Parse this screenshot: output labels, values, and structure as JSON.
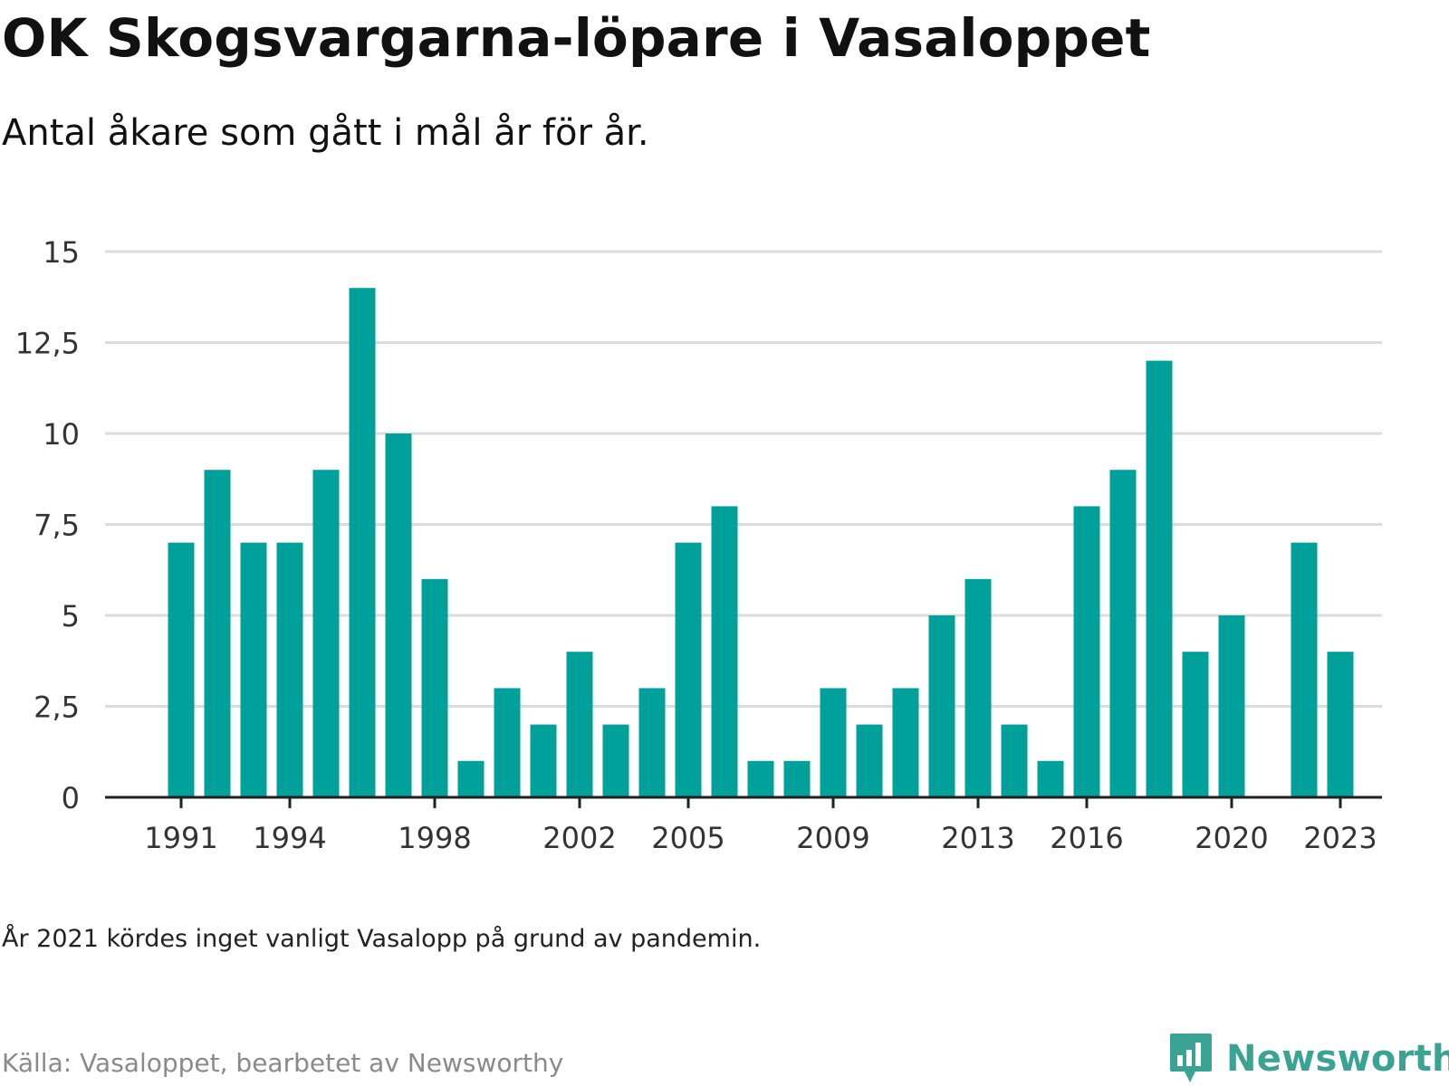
{
  "header": {
    "title": "OK Skogsvargarna-löpare i Vasaloppet",
    "subtitle": "Antal åkare som gått i mål år för år."
  },
  "footer": {
    "note": "År 2021 kördes inget vanligt Vasalopp på grund av pandemin.",
    "source": "Källa: Vasaloppet, bearbetet av Newsworthy",
    "brand": "Newsworthy",
    "brand_icon": "bar-chart-speech-bubble-icon"
  },
  "colors": {
    "bar": "#00a19a",
    "grid": "#dcdcdc",
    "axis": "#222222",
    "brand": "#3aa394"
  },
  "chart_data": {
    "type": "bar",
    "title": "OK Skogsvargarna-löpare i Vasaloppet",
    "subtitle": "Antal åkare som gått i mål år för år.",
    "xlabel": "",
    "ylabel": "",
    "x": [
      1991,
      1992,
      1993,
      1994,
      1995,
      1996,
      1997,
      1998,
      1999,
      2000,
      2001,
      2002,
      2003,
      2004,
      2005,
      2006,
      2007,
      2008,
      2009,
      2010,
      2011,
      2012,
      2013,
      2014,
      2015,
      2016,
      2017,
      2018,
      2019,
      2020,
      2021,
      2022,
      2023
    ],
    "values": [
      7,
      9,
      7,
      7,
      9,
      14,
      10,
      6,
      1,
      3,
      2,
      4,
      2,
      3,
      7,
      8,
      1,
      1,
      3,
      2,
      3,
      5,
      6,
      2,
      1,
      8,
      9,
      12,
      4,
      5,
      null,
      7,
      4
    ],
    "ylim": [
      0,
      15
    ],
    "yticks": [
      0,
      2.5,
      5,
      7.5,
      10,
      12.5,
      15
    ],
    "ytick_labels": [
      "0",
      "2,5",
      "5",
      "7,5",
      "10",
      "12,5",
      "15"
    ],
    "xticks": [
      1991,
      1994,
      1998,
      2002,
      2005,
      2009,
      2013,
      2016,
      2020,
      2023
    ],
    "xtick_labels": [
      "1991",
      "1994",
      "1998",
      "2002",
      "2005",
      "2009",
      "2013",
      "2016",
      "2020",
      "2023"
    ],
    "grid": true,
    "legend": "none"
  }
}
